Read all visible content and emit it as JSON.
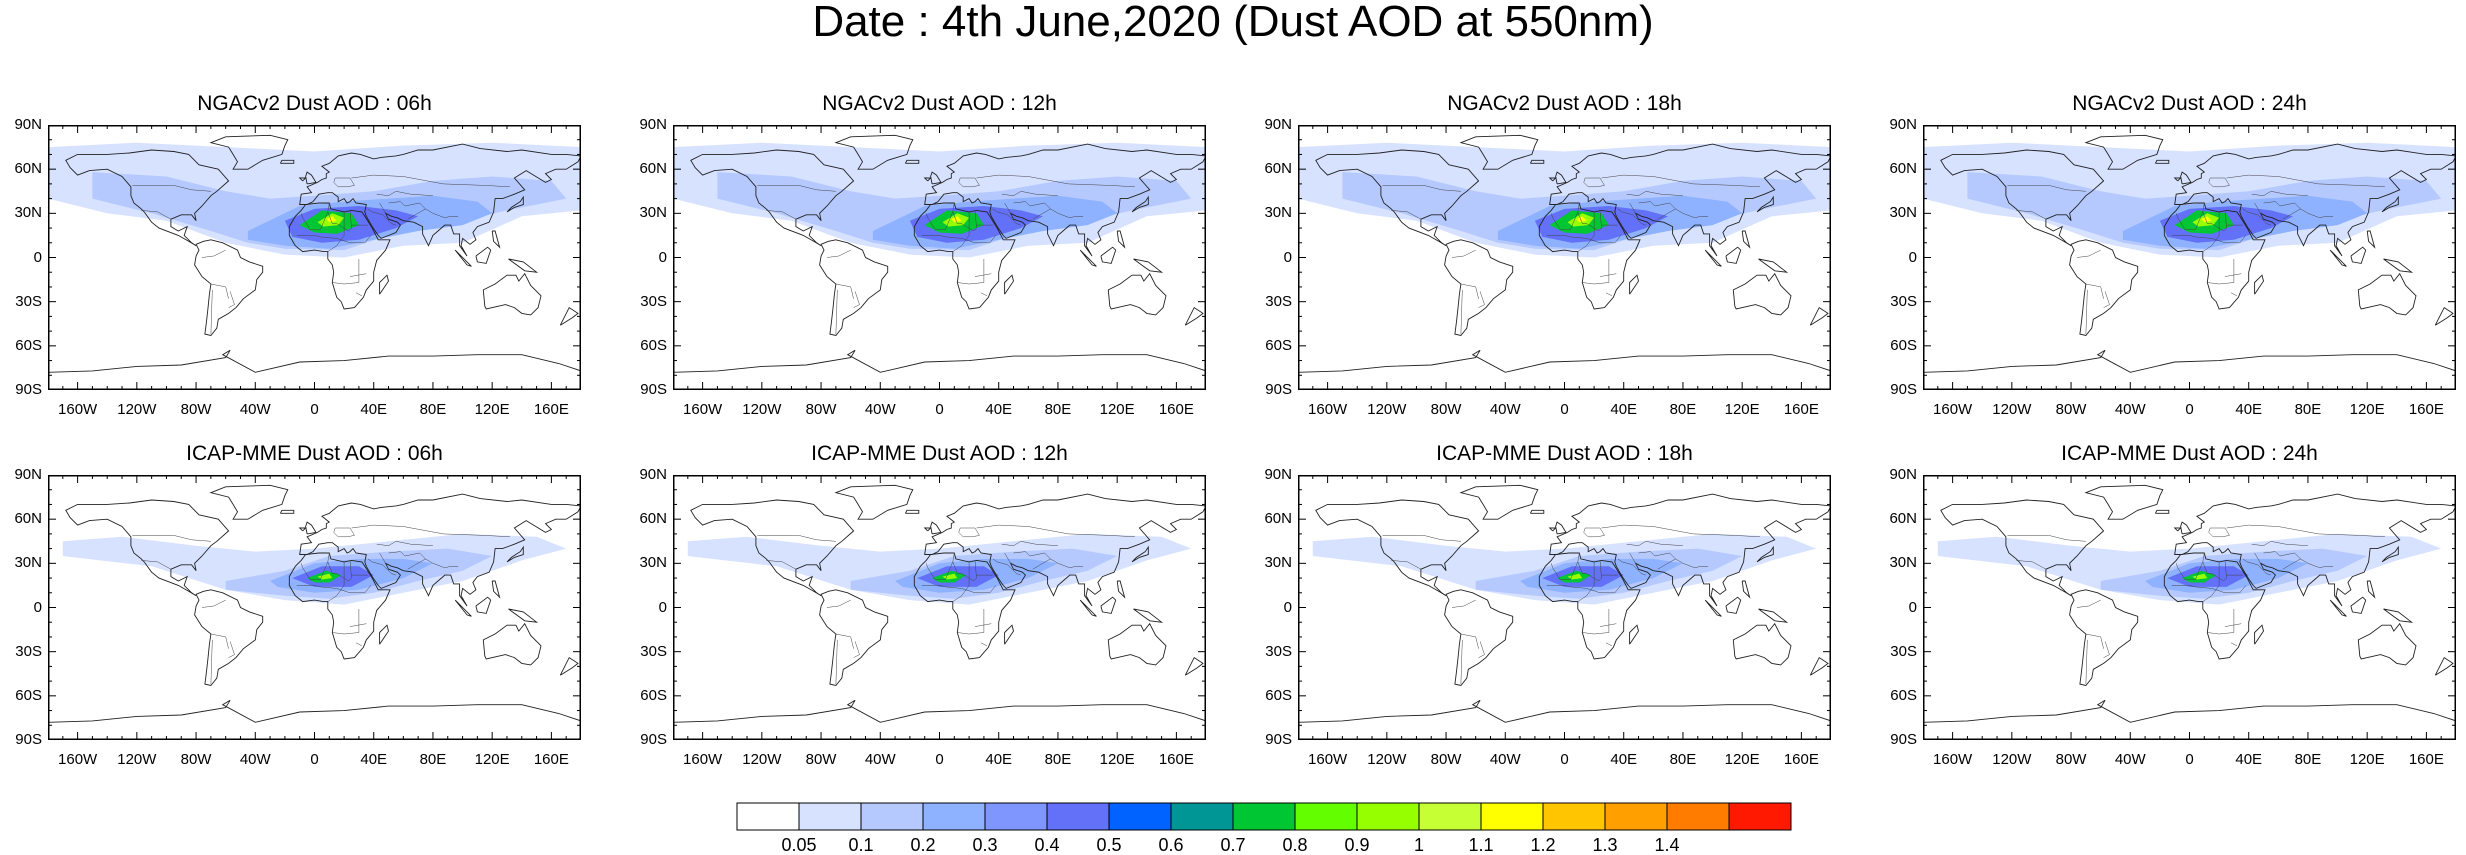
{
  "title": "Date : 4th June,2020 (Dust AOD at 550nm)",
  "panels": [
    {
      "title": "NGACv2 Dust AOD : 06h"
    },
    {
      "title": "NGACv2 Dust AOD : 12h"
    },
    {
      "title": "NGACv2 Dust AOD : 18h"
    },
    {
      "title": "NGACv2 Dust AOD : 24h"
    },
    {
      "title": "ICAP-MME Dust AOD : 06h"
    },
    {
      "title": "ICAP-MME Dust AOD : 12h"
    },
    {
      "title": "ICAP-MME Dust AOD : 18h"
    },
    {
      "title": "ICAP-MME Dust AOD : 24h"
    }
  ],
  "chart_data": {
    "type": "heatmap",
    "title": "Date : 4th June,2020 (Dust AOD at 550nm)",
    "projection": "cylindrical equidistant (global)",
    "xlim": [
      -180,
      180
    ],
    "ylim": [
      -90,
      90
    ],
    "lat_ticks": [
      "90N",
      "60N",
      "30N",
      "0",
      "30S",
      "60S",
      "90S"
    ],
    "lon_ticks": [
      "160W",
      "120W",
      "80W",
      "40W",
      "0",
      "40E",
      "80E",
      "120E",
      "160E"
    ],
    "colorbar_levels": [
      "0.05",
      "0.1",
      "0.2",
      "0.3",
      "0.4",
      "0.5",
      "0.6",
      "0.7",
      "0.8",
      "0.9",
      "1",
      "1.1",
      "1.2",
      "1.3",
      "1.4"
    ],
    "colorbar_colors": [
      "#ffffff",
      "#d6e2ff",
      "#b5c9ff",
      "#8eb2ff",
      "#7f96ff",
      "#6370f8",
      "#0063ff",
      "#009696",
      "#00c633",
      "#63ff00",
      "#96ff00",
      "#c6ff33",
      "#ffff00",
      "#ffc600",
      "#ffa000",
      "#ff7c00",
      "#ff1900"
    ],
    "panels": [
      {
        "model": "NGACv2",
        "lead_time": "06h",
        "max_aod_approx": 1.0
      },
      {
        "model": "NGACv2",
        "lead_time": "12h",
        "max_aod_approx": 1.0
      },
      {
        "model": "NGACv2",
        "lead_time": "18h",
        "max_aod_approx": 1.0
      },
      {
        "model": "NGACv2",
        "lead_time": "24h",
        "max_aod_approx": 1.0
      },
      {
        "model": "ICAP-MME",
        "lead_time": "06h",
        "max_aod_approx": 0.9
      },
      {
        "model": "ICAP-MME",
        "lead_time": "12h",
        "max_aod_approx": 0.9
      },
      {
        "model": "ICAP-MME",
        "lead_time": "18h",
        "max_aod_approx": 0.9
      },
      {
        "model": "ICAP-MME",
        "lead_time": "24h",
        "max_aod_approx": 0.9
      }
    ]
  }
}
